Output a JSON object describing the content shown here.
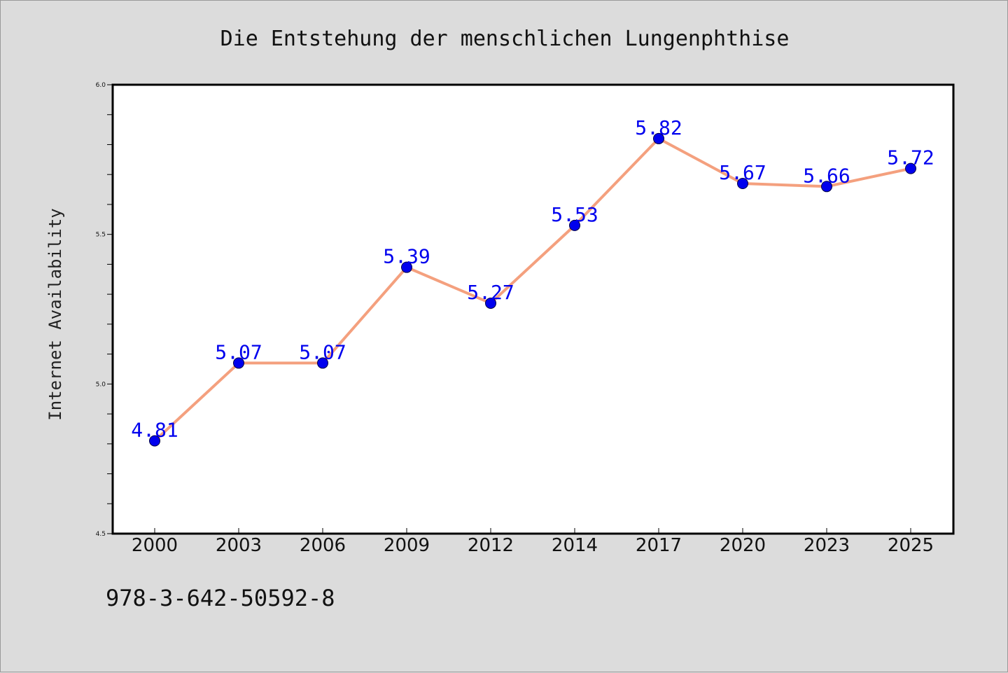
{
  "chart_data": {
    "type": "line",
    "title": "Die Entstehung der menschlichen Lungenphthise",
    "xlabel": "",
    "ylabel": "Internet Availability",
    "categories": [
      "2000",
      "2003",
      "2006",
      "2009",
      "2012",
      "2014",
      "2017",
      "2020",
      "2023",
      "2025"
    ],
    "series": [
      {
        "values": [
          4.81,
          5.07,
          5.07,
          5.39,
          5.27,
          5.53,
          5.82,
          5.67,
          5.66,
          5.72
        ],
        "line_color": "#f4a07e",
        "marker_color": "#0000ee",
        "label_color": "#0000ee"
      }
    ],
    "data_labels": [
      "4.81",
      "5.07",
      "5.07",
      "5.39",
      "5.27",
      "5.53",
      "5.82",
      "5.67",
      "5.66",
      "5.72"
    ],
    "ylim": [
      4.5,
      6.0
    ],
    "yticks": [
      "4.5",
      "5.0",
      "5.5",
      "6.0"
    ],
    "grid": false,
    "legend": "none"
  },
  "footer": {
    "isbn": "978-3-642-50592-8"
  },
  "colors": {
    "background": "#dcdcdc",
    "plot_background": "#ffffff",
    "axes_border": "#000000"
  }
}
